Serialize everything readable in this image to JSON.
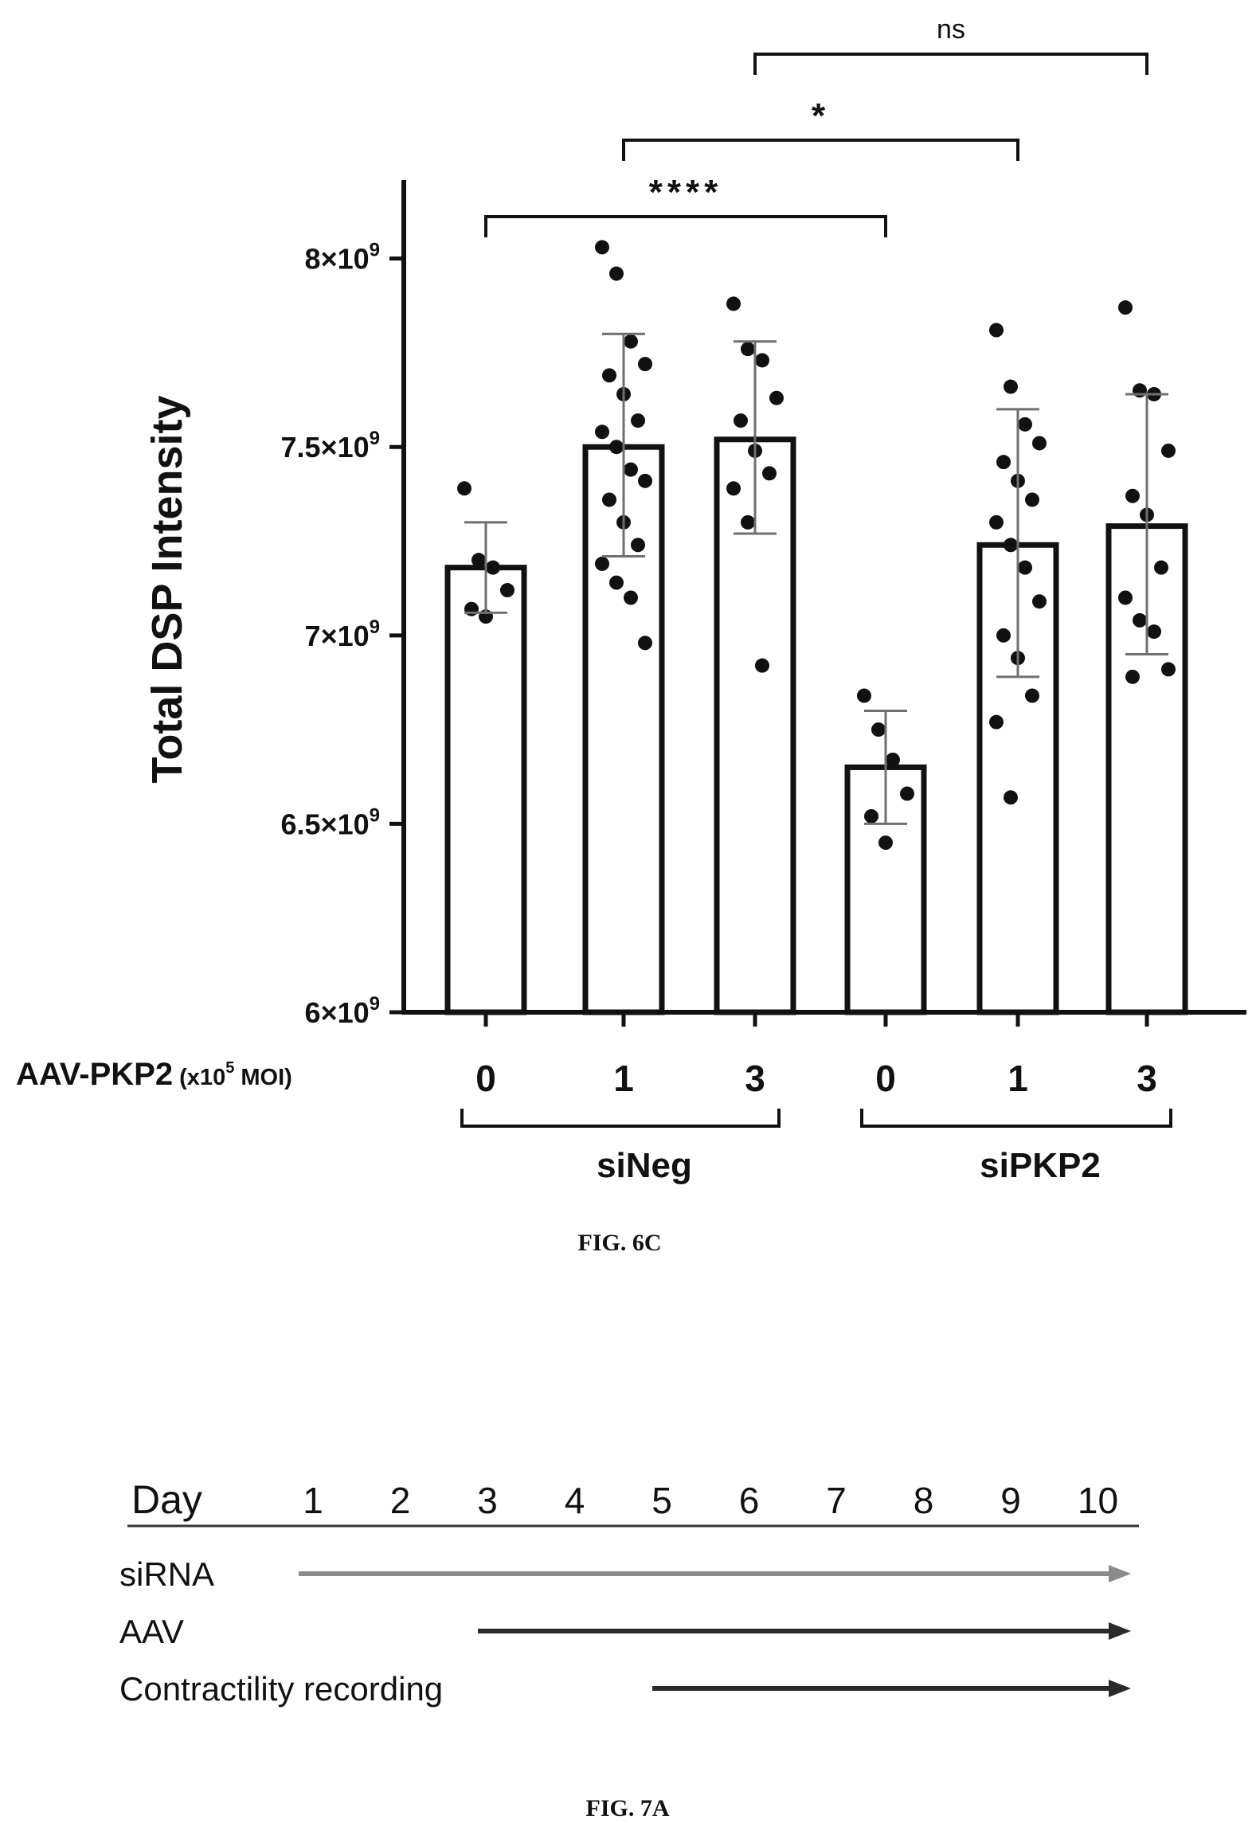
{
  "figure_6c": {
    "caption": "FIG. 6C",
    "chart_data": {
      "type": "bar",
      "ylabel": "Total DSP Intensity",
      "ylim": [
        6000000000.0,
        8200000000.0
      ],
      "yticks": [
        {
          "value": 6000000000.0,
          "mantissa": "6",
          "exp": "9"
        },
        {
          "value": 6500000000.0,
          "mantissa": "6.5",
          "exp": "9"
        },
        {
          "value": 7000000000.0,
          "mantissa": "7",
          "exp": "9"
        },
        {
          "value": 7500000000.0,
          "mantissa": "7.5",
          "exp": "9"
        },
        {
          "value": 8000000000.0,
          "mantissa": "8",
          "exp": "9"
        }
      ],
      "x_axis_title": {
        "main": "AAV-PKP2",
        "open": " (x10",
        "exp": "5",
        "close": " MOI)"
      },
      "categories": [
        "0",
        "1",
        "3",
        "0",
        "1",
        "3"
      ],
      "groups": [
        {
          "label": "siNeg",
          "members": [
            0,
            1,
            2
          ]
        },
        {
          "label": "siPKP2",
          "members": [
            3,
            4,
            5
          ]
        }
      ],
      "bars": [
        {
          "label": "0",
          "mean": 7180000000.0,
          "sd_low": 7060000000.0,
          "sd_high": 7300000000.0,
          "points": [
            7390000000.0,
            7200000000.0,
            7180000000.0,
            7120000000.0,
            7070000000.0,
            7050000000.0
          ]
        },
        {
          "label": "1",
          "mean": 7500000000.0,
          "sd_low": 7210000000.0,
          "sd_high": 7800000000.0,
          "points": [
            8030000000.0,
            7960000000.0,
            7780000000.0,
            7720000000.0,
            7690000000.0,
            7640000000.0,
            7570000000.0,
            7540000000.0,
            7500000000.0,
            7440000000.0,
            7410000000.0,
            7360000000.0,
            7300000000.0,
            7240000000.0,
            7190000000.0,
            7140000000.0,
            7100000000.0,
            6980000000.0
          ]
        },
        {
          "label": "3",
          "mean": 7520000000.0,
          "sd_low": 7270000000.0,
          "sd_high": 7780000000.0,
          "points": [
            7880000000.0,
            7760000000.0,
            7730000000.0,
            7630000000.0,
            7570000000.0,
            7490000000.0,
            7430000000.0,
            7390000000.0,
            7300000000.0,
            6920000000.0
          ]
        },
        {
          "label": "0",
          "mean": 6650000000.0,
          "sd_low": 6500000000.0,
          "sd_high": 6800000000.0,
          "points": [
            6840000000.0,
            6750000000.0,
            6670000000.0,
            6580000000.0,
            6520000000.0,
            6450000000.0
          ]
        },
        {
          "label": "1",
          "mean": 7240000000.0,
          "sd_low": 6890000000.0,
          "sd_high": 7600000000.0,
          "points": [
            7810000000.0,
            7660000000.0,
            7560000000.0,
            7510000000.0,
            7460000000.0,
            7410000000.0,
            7360000000.0,
            7300000000.0,
            7240000000.0,
            7180000000.0,
            7090000000.0,
            7000000000.0,
            6940000000.0,
            6840000000.0,
            6770000000.0,
            6570000000.0
          ]
        },
        {
          "label": "3",
          "mean": 7290000000.0,
          "sd_low": 6950000000.0,
          "sd_high": 7640000000.0,
          "points": [
            7870000000.0,
            7650000000.0,
            7640000000.0,
            7490000000.0,
            7370000000.0,
            7320000000.0,
            7180000000.0,
            7100000000.0,
            7040000000.0,
            7010000000.0,
            6910000000.0,
            6890000000.0
          ]
        }
      ],
      "significance": [
        {
          "from": 0,
          "to": 3,
          "label": "****"
        },
        {
          "from": 1,
          "to": 4,
          "label": "*"
        },
        {
          "from": 2,
          "to": 5,
          "label": "ns"
        }
      ]
    }
  },
  "figure_7a": {
    "caption": "FIG. 7A",
    "day_label": "Day",
    "days": [
      "1",
      "2",
      "3",
      "4",
      "5",
      "6",
      "7",
      "8",
      "9",
      "10"
    ],
    "rows": [
      {
        "label": "siRNA",
        "start_day": 1,
        "end_day": 10,
        "color": "#8a8a8a"
      },
      {
        "label": "AAV",
        "start_day": 3,
        "end_day": 10,
        "color": "#2a2a2a"
      },
      {
        "label": "Contractility recording",
        "start_day": 5,
        "end_day": 10,
        "color": "#2a2a2a"
      }
    ]
  }
}
